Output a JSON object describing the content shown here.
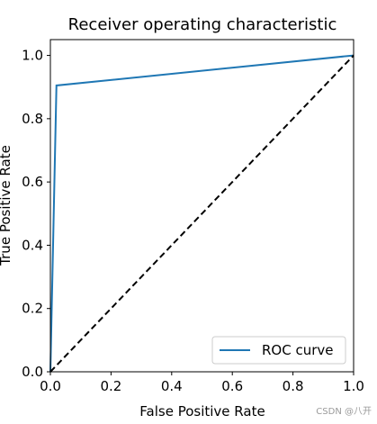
{
  "chart_data": {
    "type": "line",
    "title": "Receiver operating characteristic",
    "xlabel": "False Positive Rate",
    "ylabel": "True Positive Rate",
    "xlim": [
      0.0,
      1.0
    ],
    "ylim": [
      0.0,
      1.05
    ],
    "xticks": [
      "0.0",
      "0.2",
      "0.4",
      "0.6",
      "0.8",
      "1.0"
    ],
    "yticks": [
      "0.0",
      "0.2",
      "0.4",
      "0.6",
      "0.8",
      "1.0"
    ],
    "legend_position": "lower-right",
    "grid": false,
    "series": [
      {
        "name": "ROC curve",
        "color": "#1f77b4",
        "style": "solid",
        "x": [
          0.0,
          0.02,
          1.0
        ],
        "y": [
          0.0,
          0.905,
          1.0
        ]
      },
      {
        "color": "#000000",
        "style": "dashed",
        "x": [
          0.0,
          1.0
        ],
        "y": [
          0.0,
          1.0
        ]
      }
    ]
  },
  "watermark": "CSDN @八开"
}
